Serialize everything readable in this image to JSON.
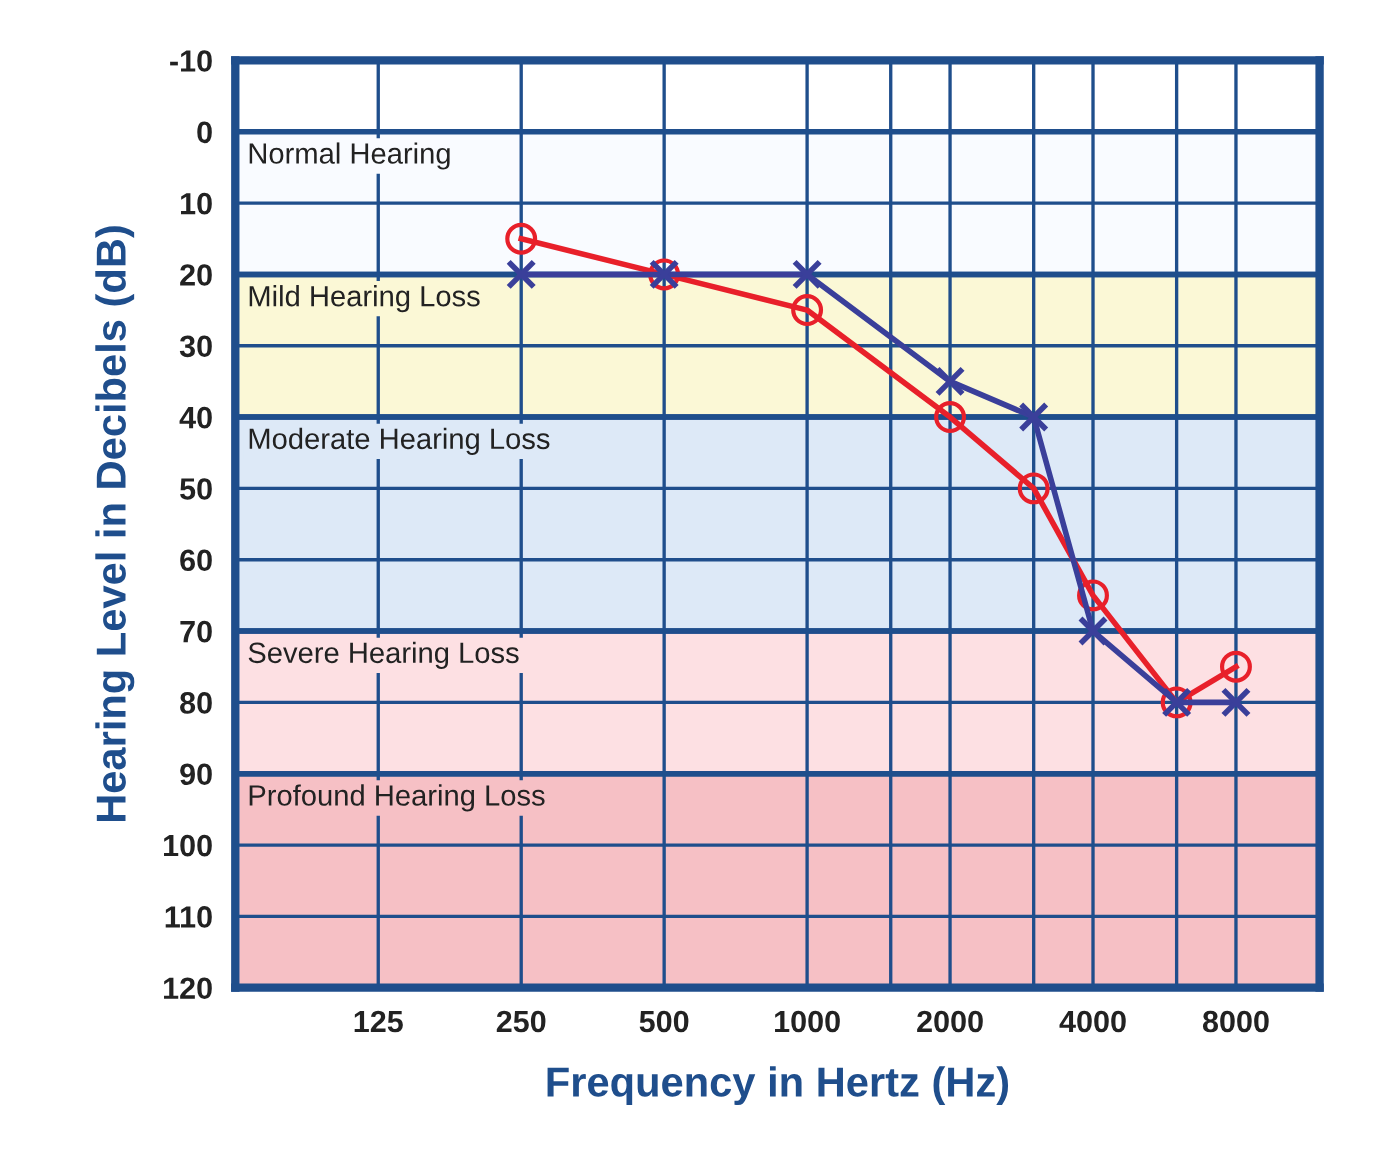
{
  "chart_data": {
    "type": "line",
    "xlabel": "Frequency in Hertz (Hz)",
    "ylabel": "Hearing Level in Decibels (dB)",
    "log": "x",
    "xlim": [
      62.5,
      12000
    ],
    "ylim": [
      120,
      -10
    ],
    "xticks": [
      125,
      250,
      500,
      1000,
      {
        "value": 1500,
        "label": null
      },
      2000,
      {
        "value": 3000,
        "label": null
      },
      4000,
      {
        "value": 6000,
        "label": null
      },
      8000
    ],
    "yticks": [
      -10,
      0,
      10,
      20,
      30,
      40,
      50,
      60,
      70,
      80,
      90,
      100,
      110,
      120
    ],
    "grid": true,
    "x": [
      250,
      500,
      1000,
      2000,
      3000,
      4000,
      6000,
      8000
    ],
    "series": [
      {
        "color": "#e8202a",
        "marker": "circle",
        "values": [
          15,
          20,
          25,
          40,
          50,
          65,
          80,
          75
        ]
      },
      {
        "color": "#3a3f9a",
        "marker": "cross",
        "values": [
          20,
          20,
          20,
          35,
          40,
          70,
          80,
          80
        ]
      }
    ],
    "bands": [
      {
        "axis": "y",
        "from": 0,
        "to": 20,
        "label": "Normal Hearing",
        "color": "#f9fbff"
      },
      {
        "axis": "y",
        "from": 20,
        "to": 40,
        "label": "Mild Hearing Loss",
        "color": "#fbf8d6"
      },
      {
        "axis": "y",
        "from": 40,
        "to": 70,
        "label": "Moderate Hearing Loss",
        "color": "#dde9f7"
      },
      {
        "axis": "y",
        "from": 70,
        "to": 90,
        "label": "Severe Hearing Loss",
        "color": "#fde0e3"
      },
      {
        "axis": "y",
        "from": 90,
        "to": 120,
        "label": "Profound Hearing Loss",
        "color": "#f6c0c5"
      }
    ]
  }
}
